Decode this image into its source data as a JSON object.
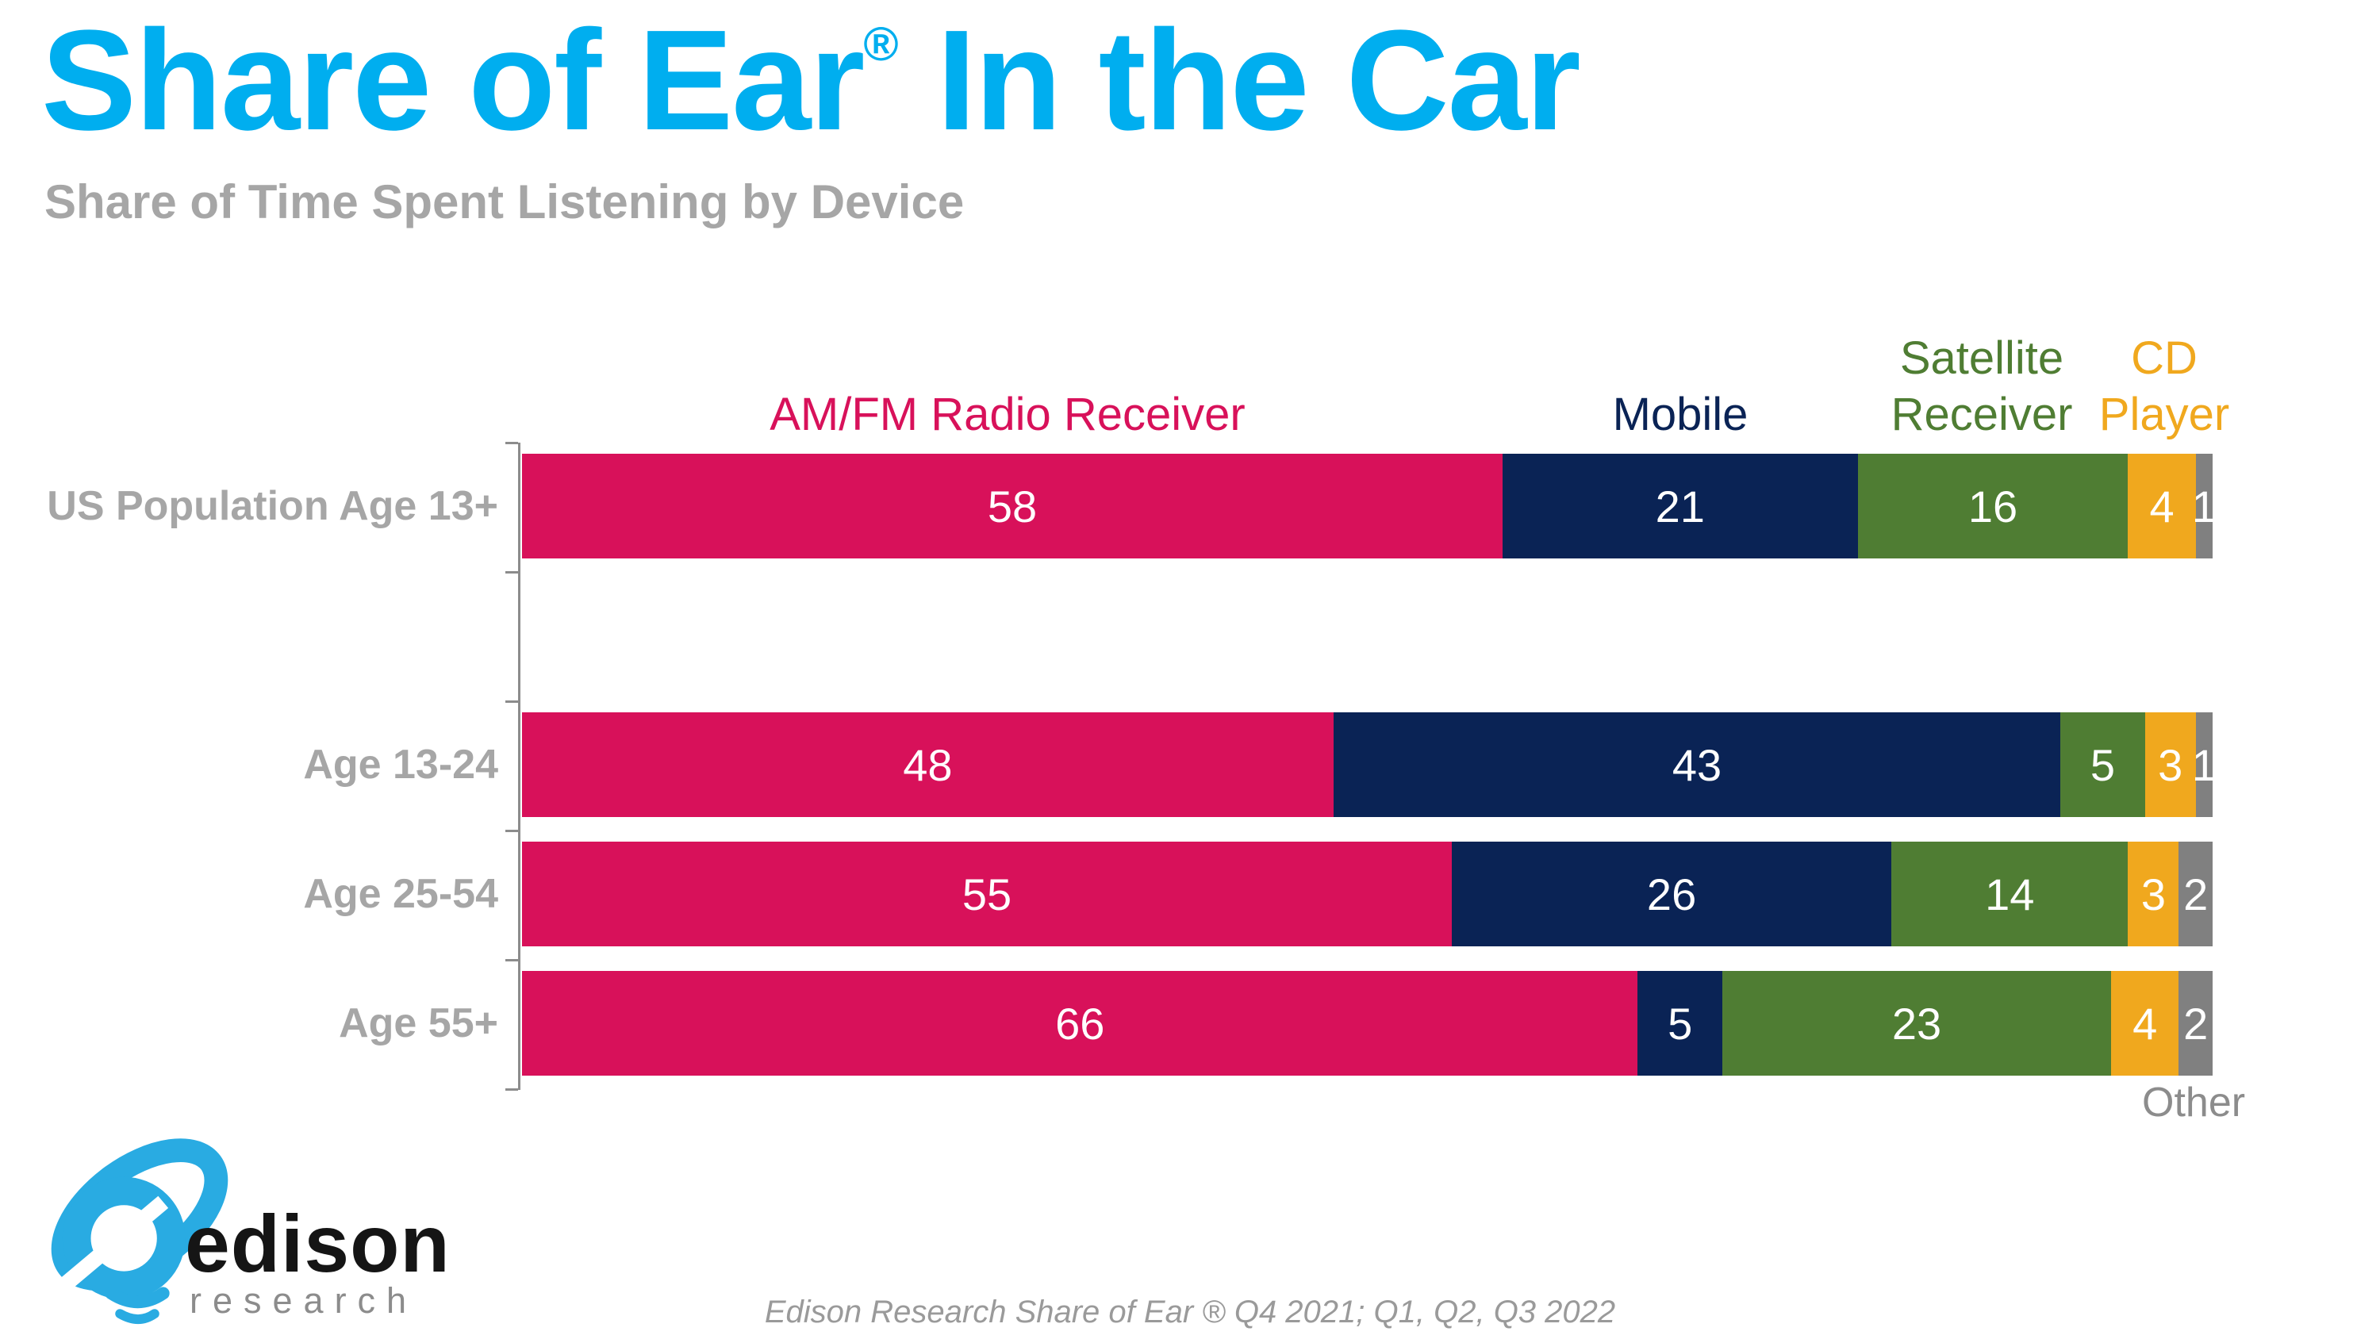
{
  "header": {
    "title_main": "Share of Ear",
    "title_reg": "®",
    "title_rest": " In the Car",
    "subtitle": "Share of Time Spent Listening by Device"
  },
  "chart_data": {
    "type": "bar",
    "variant": "horizontal-stacked",
    "xlim": [
      0,
      100
    ],
    "grid": false,
    "legend_position": "top-inline-colored-text",
    "categories": [
      "US Population Age 13+",
      "Age 13-24",
      "Age 25-54",
      "Age 55+"
    ],
    "series": [
      {
        "name": "AM/FM Radio Receiver",
        "color": "#D8115A",
        "values": [
          58,
          48,
          55,
          66
        ]
      },
      {
        "name": "Mobile",
        "color": "#0A2355",
        "values": [
          21,
          43,
          26,
          5
        ]
      },
      {
        "name": "Satellite Receiver",
        "color": "#4F7D33",
        "values": [
          16,
          5,
          14,
          23
        ]
      },
      {
        "name": "CD Player",
        "color": "#F0A81E",
        "values": [
          4,
          3,
          3,
          4
        ]
      },
      {
        "name": "Other",
        "color": "#808080",
        "values": [
          1,
          1,
          2,
          2
        ]
      }
    ],
    "value_label_color": "#FFFFFF",
    "axis_color": "#8C8C8C",
    "category_label_color": "#A6A6A6"
  },
  "colors": {
    "title_accent": "#00AEEF",
    "subtitle_gray": "#A6A6A6",
    "logo_blue": "#29ABE2"
  },
  "logo": {
    "word": "edison",
    "sub": "research"
  },
  "footer": {
    "citation": "Edison Research Share of Ear ® Q4 2021; Q1, Q2, Q3 2022"
  }
}
